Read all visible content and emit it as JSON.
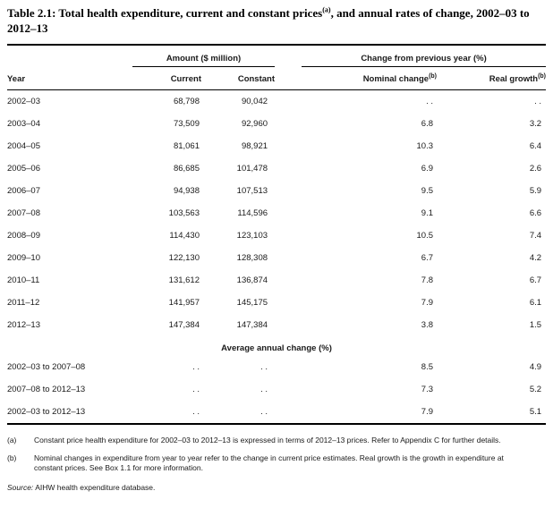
{
  "title": {
    "text_before_sup": "Table 2.1: Total health expenditure, current and constant prices",
    "sup": "(a)",
    "text_after_sup": ", and annual rates of change, 2002–03 to 2012–13"
  },
  "table": {
    "spanners": {
      "amount": "Amount ($ million)",
      "change": "Change from previous year (%)"
    },
    "columns": {
      "year": "Year",
      "current": "Current",
      "constant": "Constant",
      "nominal": "Nominal change",
      "nominal_sup": "(b)",
      "real": "Real growth",
      "real_sup": "(b)"
    },
    "rows": [
      {
        "year": "2002–03",
        "current": "68,798",
        "constant": "90,042",
        "nominal": ". .",
        "real": ". ."
      },
      {
        "year": "2003–04",
        "current": "73,509",
        "constant": "92,960",
        "nominal": "6.8",
        "real": "3.2"
      },
      {
        "year": "2004–05",
        "current": "81,061",
        "constant": "98,921",
        "nominal": "10.3",
        "real": "6.4"
      },
      {
        "year": "2005–06",
        "current": "86,685",
        "constant": "101,478",
        "nominal": "6.9",
        "real": "2.6"
      },
      {
        "year": "2006–07",
        "current": "94,938",
        "constant": "107,513",
        "nominal": "9.5",
        "real": "5.9"
      },
      {
        "year": "2007–08",
        "current": "103,563",
        "constant": "114,596",
        "nominal": "9.1",
        "real": "6.6"
      },
      {
        "year": "2008–09",
        "current": "114,430",
        "constant": "123,103",
        "nominal": "10.5",
        "real": "7.4"
      },
      {
        "year": "2009–10",
        "current": "122,130",
        "constant": "128,308",
        "nominal": "6.7",
        "real": "4.2"
      },
      {
        "year": "2010–11",
        "current": "131,612",
        "constant": "136,874",
        "nominal": "7.8",
        "real": "6.7"
      },
      {
        "year": "2011–12",
        "current": "141,957",
        "constant": "145,175",
        "nominal": "7.9",
        "real": "6.1"
      },
      {
        "year": "2012–13",
        "current": "147,384",
        "constant": "147,384",
        "nominal": "3.8",
        "real": "1.5"
      }
    ],
    "section_header": "Average annual change (%)",
    "avg_rows": [
      {
        "year": "2002–03 to 2007–08",
        "current": ". .",
        "constant": ". .",
        "nominal": "8.5",
        "real": "4.9"
      },
      {
        "year": "2007–08 to 2012–13",
        "current": ". .",
        "constant": ". .",
        "nominal": "7.3",
        "real": "5.2"
      },
      {
        "year": "2002–03 to 2012–13",
        "current": ". .",
        "constant": ". .",
        "nominal": "7.9",
        "real": "5.1"
      }
    ]
  },
  "footnotes": [
    {
      "marker": "(a)",
      "text": "Constant price health expenditure for 2002–03 to 2012–13 is expressed in terms of 2012–13 prices. Refer to Appendix C for further details."
    },
    {
      "marker": "(b)",
      "text": "Nominal changes in expenditure from year to year refer to the change in current price estimates. Real growth is the growth in expenditure at constant prices. See Box 1.1 for more information."
    }
  ],
  "source": {
    "label": "Source:",
    "text": " AIHW health expenditure database."
  }
}
